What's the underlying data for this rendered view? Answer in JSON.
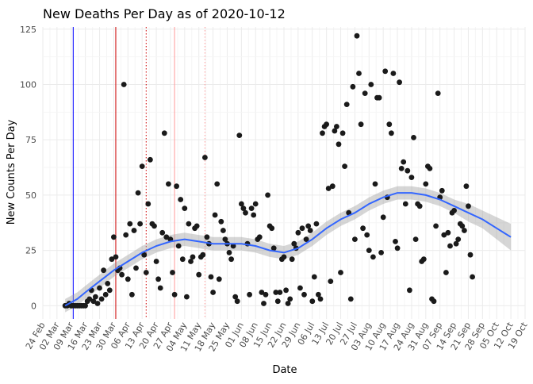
{
  "chart_data": {
    "type": "scatter",
    "title": "New Deaths Per Day as of 2020-10-12",
    "xlabel": "Date",
    "ylabel": "New Counts Per Day",
    "xlim": [
      "2020-02-24",
      "2020-10-19"
    ],
    "ylim": [
      -6,
      126
    ],
    "grid": true,
    "legend": "none",
    "x_tick_labels": [
      "24 Feb",
      "02 Mar",
      "09 Mar",
      "16 Mar",
      "23 Mar",
      "30 Mar",
      "06 Apr",
      "13 Apr",
      "20 Apr",
      "27 Apr",
      "04 May",
      "11 May",
      "18 May",
      "25 May",
      "01 Jun",
      "08 Jun",
      "15 Jun",
      "22 Jun",
      "29 Jun",
      "06 Jul",
      "13 Jul",
      "20 Jul",
      "27 Jul",
      "03 Aug",
      "10 Aug",
      "17 Aug",
      "24 Aug",
      "31 Aug",
      "07 Sep",
      "14 Sep",
      "21 Sep",
      "28 Sep",
      "05 Oct",
      "12 Oct",
      "19 Oct"
    ],
    "x_tick_dates": [
      "2020-02-24",
      "2020-03-02",
      "2020-03-09",
      "2020-03-16",
      "2020-03-23",
      "2020-03-30",
      "2020-04-06",
      "2020-04-13",
      "2020-04-20",
      "2020-04-27",
      "2020-05-04",
      "2020-05-11",
      "2020-05-18",
      "2020-05-25",
      "2020-06-01",
      "2020-06-08",
      "2020-06-15",
      "2020-06-22",
      "2020-06-29",
      "2020-07-06",
      "2020-07-13",
      "2020-07-20",
      "2020-07-27",
      "2020-08-03",
      "2020-08-10",
      "2020-08-17",
      "2020-08-24",
      "2020-08-31",
      "2020-09-07",
      "2020-09-14",
      "2020-09-21",
      "2020-09-28",
      "2020-10-05",
      "2020-10-12",
      "2020-10-19"
    ],
    "y_ticks": [
      0,
      25,
      50,
      75,
      100,
      125
    ],
    "vlines": [
      {
        "x": "2020-03-10",
        "color": "#0000ff",
        "style": "solid"
      },
      {
        "x": "2020-03-31",
        "color": "#cc0000",
        "style": "solid"
      },
      {
        "x": "2020-04-15",
        "color": "#cc0000",
        "style": "dotted"
      },
      {
        "x": "2020-04-29",
        "color": "#ff9999",
        "style": "solid"
      },
      {
        "x": "2020-05-14",
        "color": "#ff9999",
        "style": "dotted"
      }
    ],
    "colors": {
      "points": "#1a1a1a",
      "smooth_line": "#3366ff",
      "confidence_band": "#999999",
      "grid_major": "#ebebeb",
      "grid_minor": "#f5f5f5"
    },
    "smooth": {
      "x": [
        "2020-03-06",
        "2020-03-12",
        "2020-03-16",
        "2020-03-23",
        "2020-03-30",
        "2020-04-06",
        "2020-04-13",
        "2020-04-20",
        "2020-04-27",
        "2020-05-04",
        "2020-05-11",
        "2020-05-18",
        "2020-05-25",
        "2020-06-01",
        "2020-06-08",
        "2020-06-15",
        "2020-06-22",
        "2020-06-29",
        "2020-07-06",
        "2020-07-13",
        "2020-07-20",
        "2020-07-27",
        "2020-08-03",
        "2020-08-10",
        "2020-08-17",
        "2020-08-24",
        "2020-08-31",
        "2020-09-07",
        "2020-09-14",
        "2020-09-21",
        "2020-09-28",
        "2020-10-05",
        "2020-10-12"
      ],
      "y": [
        0,
        3,
        6,
        11,
        16,
        20,
        24,
        27,
        29,
        30,
        29,
        28,
        28,
        28,
        27,
        25,
        24,
        26,
        30,
        35,
        39,
        42,
        46,
        49,
        51,
        51,
        50,
        48,
        45,
        42,
        39,
        35,
        31
      ],
      "upper": [
        3,
        6,
        9,
        14,
        19,
        23,
        27,
        30,
        32,
        33,
        32,
        31,
        31,
        31,
        30,
        28,
        27,
        29,
        33,
        38,
        42,
        45,
        49,
        52,
        54,
        54,
        53,
        51,
        48,
        46,
        43,
        40,
        37
      ],
      "lower": [
        -3,
        0,
        3,
        8,
        13,
        17,
        21,
        24,
        26,
        27,
        26,
        25,
        25,
        25,
        24,
        22,
        21,
        23,
        27,
        32,
        36,
        39,
        43,
        46,
        48,
        48,
        47,
        45,
        42,
        38,
        35,
        30,
        25
      ]
    },
    "points": [
      {
        "x": "2020-03-06",
        "y": 0
      },
      {
        "x": "2020-03-07",
        "y": 0
      },
      {
        "x": "2020-03-08",
        "y": 1
      },
      {
        "x": "2020-03-09",
        "y": 0
      },
      {
        "x": "2020-03-10",
        "y": 0
      },
      {
        "x": "2020-03-11",
        "y": 0
      },
      {
        "x": "2020-03-12",
        "y": 0
      },
      {
        "x": "2020-03-13",
        "y": 0
      },
      {
        "x": "2020-03-14",
        "y": 0
      },
      {
        "x": "2020-03-15",
        "y": 0
      },
      {
        "x": "2020-03-16",
        "y": 0
      },
      {
        "x": "2020-03-17",
        "y": 2
      },
      {
        "x": "2020-03-18",
        "y": 3
      },
      {
        "x": "2020-03-19",
        "y": 7
      },
      {
        "x": "2020-03-20",
        "y": 2
      },
      {
        "x": "2020-03-21",
        "y": 4
      },
      {
        "x": "2020-03-22",
        "y": 1
      },
      {
        "x": "2020-03-23",
        "y": 8
      },
      {
        "x": "2020-03-24",
        "y": 3
      },
      {
        "x": "2020-03-25",
        "y": 16
      },
      {
        "x": "2020-03-26",
        "y": 5
      },
      {
        "x": "2020-03-27",
        "y": 10
      },
      {
        "x": "2020-03-28",
        "y": 7
      },
      {
        "x": "2020-03-29",
        "y": 21
      },
      {
        "x": "2020-03-30",
        "y": 31
      },
      {
        "x": "2020-03-31",
        "y": 22
      },
      {
        "x": "2020-04-01",
        "y": 16
      },
      {
        "x": "2020-04-02",
        "y": 17
      },
      {
        "x": "2020-04-03",
        "y": 14
      },
      {
        "x": "2020-04-04",
        "y": 100
      },
      {
        "x": "2020-04-05",
        "y": 32
      },
      {
        "x": "2020-04-06",
        "y": 12
      },
      {
        "x": "2020-04-07",
        "y": 37
      },
      {
        "x": "2020-04-08",
        "y": 5
      },
      {
        "x": "2020-04-09",
        "y": 34
      },
      {
        "x": "2020-04-10",
        "y": 17
      },
      {
        "x": "2020-04-11",
        "y": 51
      },
      {
        "x": "2020-04-12",
        "y": 37
      },
      {
        "x": "2020-04-13",
        "y": 63
      },
      {
        "x": "2020-04-14",
        "y": 23
      },
      {
        "x": "2020-04-15",
        "y": 15
      },
      {
        "x": "2020-04-16",
        "y": 46
      },
      {
        "x": "2020-04-17",
        "y": 66
      },
      {
        "x": "2020-04-18",
        "y": 37
      },
      {
        "x": "2020-04-19",
        "y": 36
      },
      {
        "x": "2020-04-20",
        "y": 20
      },
      {
        "x": "2020-04-21",
        "y": 12
      },
      {
        "x": "2020-04-22",
        "y": 8
      },
      {
        "x": "2020-04-23",
        "y": 33
      },
      {
        "x": "2020-04-24",
        "y": 78
      },
      {
        "x": "2020-04-25",
        "y": 31
      },
      {
        "x": "2020-04-26",
        "y": 55
      },
      {
        "x": "2020-04-27",
        "y": 30
      },
      {
        "x": "2020-04-28",
        "y": 15
      },
      {
        "x": "2020-04-29",
        "y": 5
      },
      {
        "x": "2020-04-30",
        "y": 54
      },
      {
        "x": "2020-05-01",
        "y": 27
      },
      {
        "x": "2020-05-02",
        "y": 48
      },
      {
        "x": "2020-05-03",
        "y": 21
      },
      {
        "x": "2020-05-04",
        "y": 44
      },
      {
        "x": "2020-05-05",
        "y": 4
      },
      {
        "x": "2020-05-06",
        "y": 37
      },
      {
        "x": "2020-05-07",
        "y": 20
      },
      {
        "x": "2020-05-08",
        "y": 22
      },
      {
        "x": "2020-05-09",
        "y": 35
      },
      {
        "x": "2020-05-10",
        "y": 36
      },
      {
        "x": "2020-05-11",
        "y": 14
      },
      {
        "x": "2020-05-12",
        "y": 22
      },
      {
        "x": "2020-05-13",
        "y": 23
      },
      {
        "x": "2020-05-14",
        "y": 67
      },
      {
        "x": "2020-05-15",
        "y": 31
      },
      {
        "x": "2020-05-16",
        "y": 28
      },
      {
        "x": "2020-05-17",
        "y": 13
      },
      {
        "x": "2020-05-18",
        "y": 6
      },
      {
        "x": "2020-05-19",
        "y": 41
      },
      {
        "x": "2020-05-20",
        "y": 55
      },
      {
        "x": "2020-05-21",
        "y": 12
      },
      {
        "x": "2020-05-22",
        "y": 38
      },
      {
        "x": "2020-05-23",
        "y": 34
      },
      {
        "x": "2020-05-24",
        "y": 30
      },
      {
        "x": "2020-05-25",
        "y": 28
      },
      {
        "x": "2020-05-26",
        "y": 24
      },
      {
        "x": "2020-05-27",
        "y": 21
      },
      {
        "x": "2020-05-28",
        "y": 27
      },
      {
        "x": "2020-05-29",
        "y": 4
      },
      {
        "x": "2020-05-30",
        "y": 2
      },
      {
        "x": "2020-05-31",
        "y": 77
      },
      {
        "x": "2020-06-01",
        "y": 46
      },
      {
        "x": "2020-06-02",
        "y": 44
      },
      {
        "x": "2020-06-03",
        "y": 42
      },
      {
        "x": "2020-06-04",
        "y": 28
      },
      {
        "x": "2020-06-05",
        "y": 5
      },
      {
        "x": "2020-06-06",
        "y": 44
      },
      {
        "x": "2020-06-07",
        "y": 41
      },
      {
        "x": "2020-06-08",
        "y": 46
      },
      {
        "x": "2020-06-09",
        "y": 30
      },
      {
        "x": "2020-06-10",
        "y": 31
      },
      {
        "x": "2020-06-11",
        "y": 6
      },
      {
        "x": "2020-06-12",
        "y": 1
      },
      {
        "x": "2020-06-13",
        "y": 5
      },
      {
        "x": "2020-06-14",
        "y": 50
      },
      {
        "x": "2020-06-15",
        "y": 36
      },
      {
        "x": "2020-06-16",
        "y": 35
      },
      {
        "x": "2020-06-17",
        "y": 26
      },
      {
        "x": "2020-06-18",
        "y": 6
      },
      {
        "x": "2020-06-19",
        "y": 2
      },
      {
        "x": "2020-06-20",
        "y": 6
      },
      {
        "x": "2020-06-21",
        "y": 21
      },
      {
        "x": "2020-06-22",
        "y": 22
      },
      {
        "x": "2020-06-23",
        "y": 7
      },
      {
        "x": "2020-06-24",
        "y": 1
      },
      {
        "x": "2020-06-25",
        "y": 3
      },
      {
        "x": "2020-06-26",
        "y": 21
      },
      {
        "x": "2020-06-27",
        "y": 28
      },
      {
        "x": "2020-06-28",
        "y": 26
      },
      {
        "x": "2020-06-29",
        "y": 33
      },
      {
        "x": "2020-06-30",
        "y": 8
      },
      {
        "x": "2020-07-01",
        "y": 35
      },
      {
        "x": "2020-07-02",
        "y": 5
      },
      {
        "x": "2020-07-03",
        "y": 30
      },
      {
        "x": "2020-07-04",
        "y": 36
      },
      {
        "x": "2020-07-05",
        "y": 34
      },
      {
        "x": "2020-07-06",
        "y": 2
      },
      {
        "x": "2020-07-07",
        "y": 13
      },
      {
        "x": "2020-07-08",
        "y": 37
      },
      {
        "x": "2020-07-09",
        "y": 5
      },
      {
        "x": "2020-07-10",
        "y": 3
      },
      {
        "x": "2020-07-11",
        "y": 78
      },
      {
        "x": "2020-07-12",
        "y": 81
      },
      {
        "x": "2020-07-13",
        "y": 82
      },
      {
        "x": "2020-07-14",
        "y": 53
      },
      {
        "x": "2020-07-15",
        "y": 11
      },
      {
        "x": "2020-07-16",
        "y": 54
      },
      {
        "x": "2020-07-17",
        "y": 79
      },
      {
        "x": "2020-07-18",
        "y": 81
      },
      {
        "x": "2020-07-19",
        "y": 73
      },
      {
        "x": "2020-07-20",
        "y": 15
      },
      {
        "x": "2020-07-21",
        "y": 78
      },
      {
        "x": "2020-07-22",
        "y": 63
      },
      {
        "x": "2020-07-23",
        "y": 91
      },
      {
        "x": "2020-07-24",
        "y": 42
      },
      {
        "x": "2020-07-25",
        "y": 3
      },
      {
        "x": "2020-07-26",
        "y": 99
      },
      {
        "x": "2020-07-27",
        "y": 30
      },
      {
        "x": "2020-07-28",
        "y": 122
      },
      {
        "x": "2020-07-29",
        "y": 105
      },
      {
        "x": "2020-07-30",
        "y": 82
      },
      {
        "x": "2020-07-31",
        "y": 35
      },
      {
        "x": "2020-08-01",
        "y": 96
      },
      {
        "x": "2020-08-02",
        "y": 32
      },
      {
        "x": "2020-08-03",
        "y": 25
      },
      {
        "x": "2020-08-04",
        "y": 100
      },
      {
        "x": "2020-08-05",
        "y": 22
      },
      {
        "x": "2020-08-06",
        "y": 55
      },
      {
        "x": "2020-08-07",
        "y": 94
      },
      {
        "x": "2020-08-08",
        "y": 94
      },
      {
        "x": "2020-08-09",
        "y": 24
      },
      {
        "x": "2020-08-10",
        "y": 40
      },
      {
        "x": "2020-08-11",
        "y": 106
      },
      {
        "x": "2020-08-12",
        "y": 49
      },
      {
        "x": "2020-08-13",
        "y": 82
      },
      {
        "x": "2020-08-14",
        "y": 78
      },
      {
        "x": "2020-08-15",
        "y": 105
      },
      {
        "x": "2020-08-16",
        "y": 29
      },
      {
        "x": "2020-08-17",
        "y": 26
      },
      {
        "x": "2020-08-18",
        "y": 101
      },
      {
        "x": "2020-08-19",
        "y": 62
      },
      {
        "x": "2020-08-20",
        "y": 65
      },
      {
        "x": "2020-08-21",
        "y": 46
      },
      {
        "x": "2020-08-22",
        "y": 61
      },
      {
        "x": "2020-08-23",
        "y": 7
      },
      {
        "x": "2020-08-24",
        "y": 58
      },
      {
        "x": "2020-08-25",
        "y": 76
      },
      {
        "x": "2020-08-26",
        "y": 30
      },
      {
        "x": "2020-08-27",
        "y": 46
      },
      {
        "x": "2020-08-28",
        "y": 45
      },
      {
        "x": "2020-08-29",
        "y": 20
      },
      {
        "x": "2020-08-30",
        "y": 21
      },
      {
        "x": "2020-08-31",
        "y": 55
      },
      {
        "x": "2020-09-01",
        "y": 63
      },
      {
        "x": "2020-09-02",
        "y": 62
      },
      {
        "x": "2020-09-03",
        "y": 3
      },
      {
        "x": "2020-09-04",
        "y": 2
      },
      {
        "x": "2020-09-05",
        "y": 36
      },
      {
        "x": "2020-09-06",
        "y": 96
      },
      {
        "x": "2020-09-07",
        "y": 49
      },
      {
        "x": "2020-09-08",
        "y": 52
      },
      {
        "x": "2020-09-09",
        "y": 32
      },
      {
        "x": "2020-09-10",
        "y": 15
      },
      {
        "x": "2020-09-11",
        "y": 33
      },
      {
        "x": "2020-09-12",
        "y": 27
      },
      {
        "x": "2020-09-13",
        "y": 42
      },
      {
        "x": "2020-09-14",
        "y": 43
      },
      {
        "x": "2020-09-15",
        "y": 28
      },
      {
        "x": "2020-09-16",
        "y": 30
      },
      {
        "x": "2020-09-17",
        "y": 37
      },
      {
        "x": "2020-09-18",
        "y": 36
      },
      {
        "x": "2020-09-19",
        "y": 34
      },
      {
        "x": "2020-09-20",
        "y": 54
      },
      {
        "x": "2020-09-21",
        "y": 45
      },
      {
        "x": "2020-09-22",
        "y": 23
      },
      {
        "x": "2020-09-23",
        "y": 13
      }
    ]
  }
}
